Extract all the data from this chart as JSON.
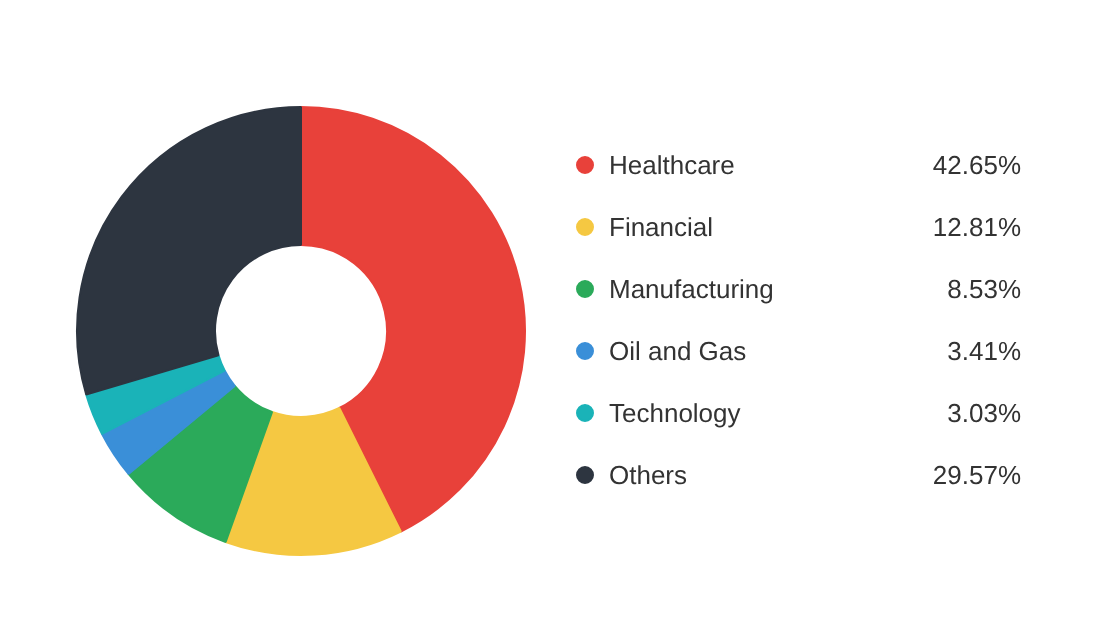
{
  "chart_data": {
    "type": "donut",
    "categories": [
      "Healthcare",
      "Financial",
      "Manufacturing",
      "Oil and Gas",
      "Technology",
      "Others"
    ],
    "values": [
      42.65,
      12.81,
      8.53,
      3.41,
      3.03,
      29.57
    ],
    "value_labels": [
      "42.65%",
      "12.81%",
      "8.53%",
      "3.41%",
      "3.03%",
      "29.57%"
    ],
    "colors": [
      "#e8413a",
      "#f5c842",
      "#2baa5a",
      "#3a8fd8",
      "#1ab3b8",
      "#2d3540"
    ],
    "legend": "right"
  }
}
